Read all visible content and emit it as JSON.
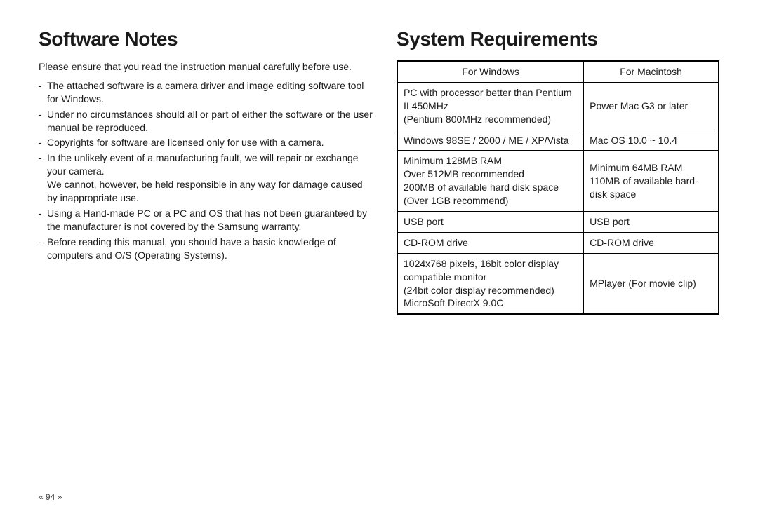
{
  "left": {
    "heading": "Software Notes",
    "intro": "Please ensure that you read the instruction manual carefully before use.",
    "notes": [
      "The attached software is a camera driver and image editing software tool for Windows.",
      "Under no circumstances should all or part of either the software or the user manual be reproduced.",
      "Copyrights for software are licensed only for use with a camera.",
      "In the unlikely event of a manufacturing fault, we will repair or exchange your camera.",
      "Using a Hand-made PC or a PC and OS that has not been guaranteed by the manufacturer is not covered by the Samsung warranty.",
      "Before reading this manual, you should have a basic knowledge of computers and O/S (Operating Systems)."
    ],
    "note3_sub": "We cannot, however, be held responsible in any way for damage caused by inappropriate use."
  },
  "right": {
    "heading": "System Requirements",
    "table": {
      "head_win": "For Windows",
      "head_mac": "For Macintosh",
      "rows": [
        {
          "win": "PC with processor better than Pentium II 450MHz\n(Pentium 800MHz recommended)",
          "mac": "Power Mac G3 or later"
        },
        {
          "win": "Windows 98SE / 2000 / ME / XP/Vista",
          "mac": "Mac OS  10.0 ~ 10.4"
        },
        {
          "win": "Minimum 128MB RAM\nOver 512MB recommended\n200MB of available hard disk space (Over 1GB recommend)",
          "mac": "Minimum 64MB RAM\n110MB of available hard-disk space"
        },
        {
          "win": "USB port",
          "mac": "USB port"
        },
        {
          "win": "CD-ROM drive",
          "mac": "CD-ROM drive"
        },
        {
          "win": "1024x768 pixels, 16bit color display compatible monitor\n(24bit color display recommended)\nMicroSoft DirectX 9.0C",
          "mac": "MPlayer (For movie clip)"
        }
      ]
    }
  },
  "page_number": "« 94 »"
}
